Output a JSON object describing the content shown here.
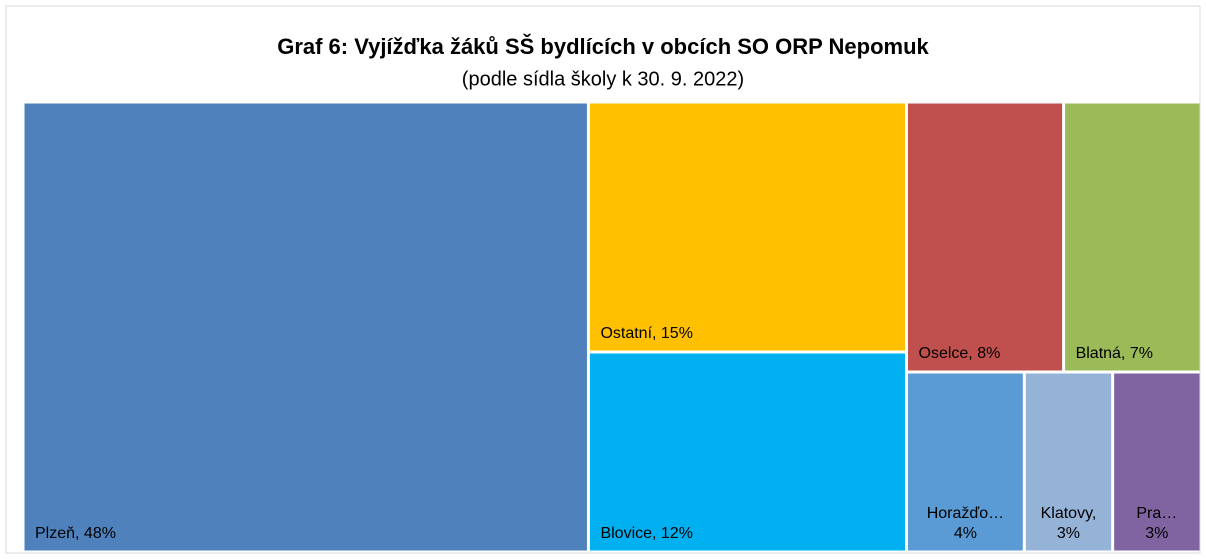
{
  "chart_data": {
    "type": "treemap",
    "title": "Graf 6: Vyjížďka žáků SŠ bydlících v obcích SO ORP Nepomuk",
    "subtitle": "(podle sídla školy k 30. 9. 2022)",
    "values": [
      48,
      15,
      12,
      8,
      7,
      4,
      3,
      3
    ],
    "value_labels": [
      [
        "Plzeň, 48%"
      ],
      [
        "Ostatní, 15%"
      ],
      [
        "Blovice, 12%"
      ],
      [
        "Oselce, 8%"
      ],
      [
        "Blatná, 7%"
      ],
      [
        "Horažďo…",
        "4%"
      ],
      [
        "Klatovy,",
        "3%"
      ],
      [
        "Pra…",
        "3%"
      ]
    ],
    "colors": [
      "#4f81bd",
      "#ffc000",
      "#00b0f0",
      "#c0504d",
      "#9bbb59",
      "#5b9bd5",
      "#95b3d7",
      "#8064a2"
    ]
  }
}
